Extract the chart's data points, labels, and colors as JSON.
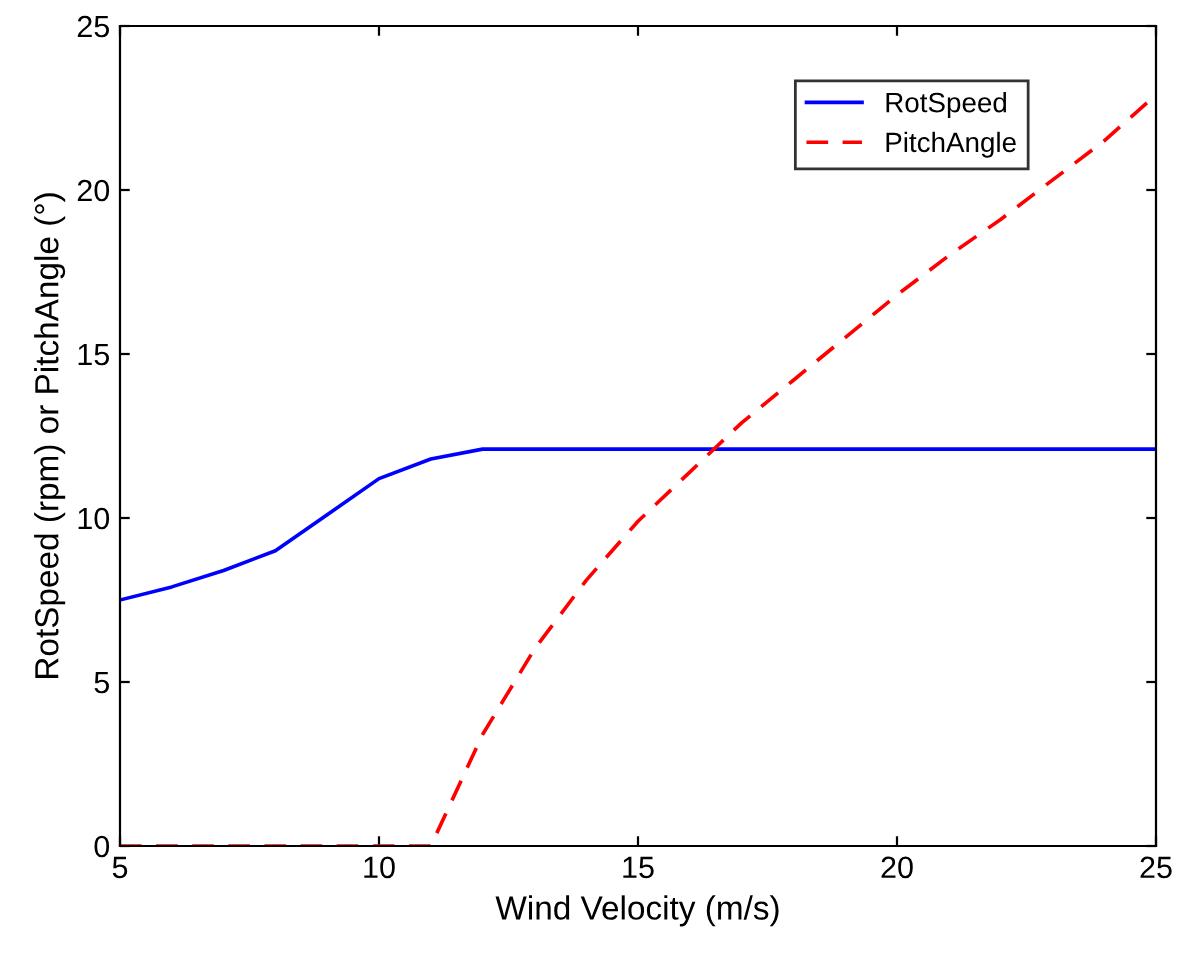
{
  "chart_data": {
    "type": "line",
    "xlabel": "Wind Velocity (m/s)",
    "ylabel": "RotSpeed (rpm) or PitchAngle (°)",
    "x": [
      5,
      6,
      7,
      8,
      9,
      10,
      11,
      12,
      13,
      14,
      15,
      16,
      17,
      18,
      19,
      20,
      21,
      22,
      23,
      24,
      25
    ],
    "series": [
      {
        "name": "RotSpeed",
        "color": "#0000ff",
        "line_style": "solid",
        "values": [
          7.5,
          7.9,
          8.4,
          9.0,
          10.1,
          11.2,
          11.8,
          12.1,
          12.1,
          12.1,
          12.1,
          12.1,
          12.1,
          12.1,
          12.1,
          12.1,
          12.1,
          12.1,
          12.1,
          12.1,
          12.1
        ]
      },
      {
        "name": "PitchAngle",
        "color": "#ff0000",
        "line_style": "dashed",
        "values": [
          0,
          0,
          0,
          0,
          0,
          0,
          0,
          3.4,
          6.0,
          8.1,
          9.9,
          11.4,
          12.9,
          14.2,
          15.5,
          16.8,
          18.0,
          19.1,
          20.3,
          21.5,
          22.9
        ]
      }
    ],
    "xlim": [
      5,
      25
    ],
    "xticks": [
      5,
      10,
      15,
      20,
      25
    ],
    "ylim": [
      0,
      25
    ],
    "yticks": [
      0,
      5,
      10,
      15,
      20,
      25
    ],
    "grid": false,
    "legend": "top right",
    "marker": "none"
  }
}
